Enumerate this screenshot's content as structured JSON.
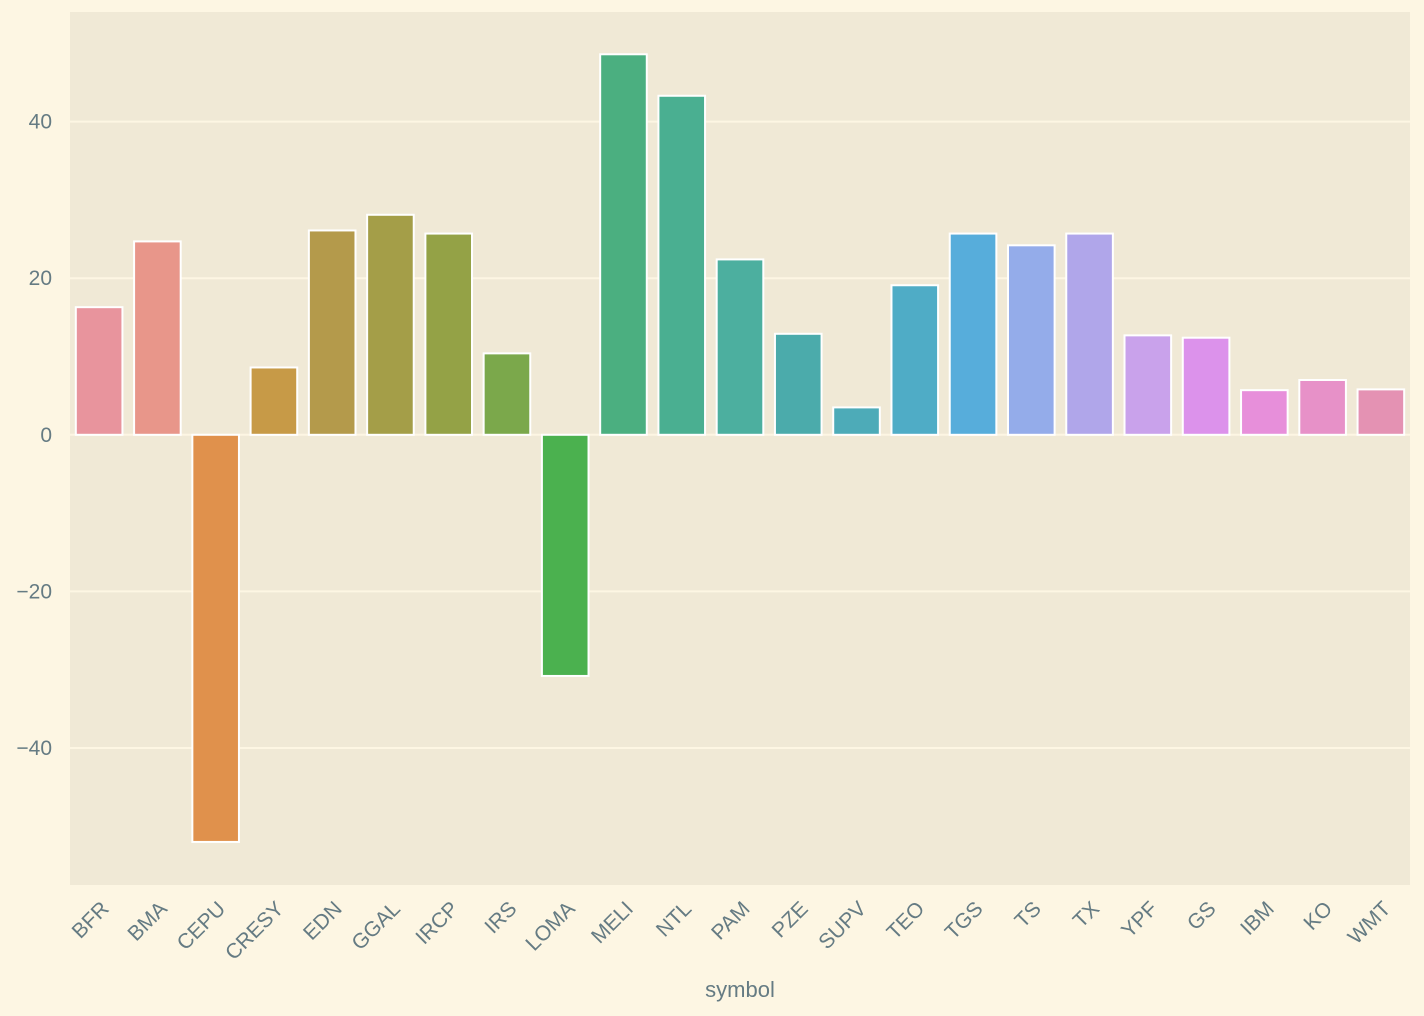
{
  "chart_data": {
    "type": "bar",
    "xlabel": "symbol",
    "ylabel": "",
    "ylim": [
      -57.5,
      54
    ],
    "yticks": [
      -40,
      -20,
      0,
      20,
      40
    ],
    "grid": true,
    "categories": [
      "BFR",
      "BMA",
      "CEPU",
      "CRESY",
      "EDN",
      "GGAL",
      "IRCP",
      "IRS",
      "LOMA",
      "MELI",
      "NTL",
      "PAM",
      "PZE",
      "SUPV",
      "TEO",
      "TGS",
      "TS",
      "TX",
      "YPF",
      "GS",
      "IBM",
      "KO",
      "WMT"
    ],
    "values": [
      16.3,
      24.7,
      -52.0,
      8.6,
      26.1,
      28.1,
      25.7,
      10.4,
      -30.8,
      48.6,
      43.3,
      22.4,
      12.9,
      3.5,
      19.1,
      25.7,
      24.2,
      25.7,
      12.7,
      12.4,
      5.7,
      7.0,
      5.8
    ],
    "colors": [
      "#e8949d",
      "#e8968a",
      "#e0914c",
      "#c79a47",
      "#b49a4b",
      "#a49e48",
      "#94a246",
      "#7ba84b",
      "#4bb14f",
      "#4baf80",
      "#4aaf91",
      "#4caf9f",
      "#4babab",
      "#4dabb8",
      "#4facc6",
      "#57addb",
      "#94acea",
      "#b0a6ea",
      "#c9a2eb",
      "#dc92eb",
      "#e78fda",
      "#e791c8",
      "#e492b3"
    ],
    "background": "#f0e9d6",
    "page_background": "#fdf6e3",
    "text_color": "#657b83"
  }
}
